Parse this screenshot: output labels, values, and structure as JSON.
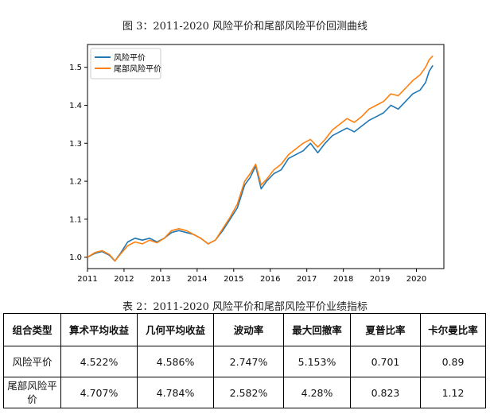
{
  "figure": {
    "title": "图 3：2011-2020 风险平价和尾部风险平价回测曲线"
  },
  "chart_data": {
    "type": "line",
    "title": "图 3：2011-2020 风险平价和尾部风险平价回测曲线",
    "xlabel": "",
    "ylabel": "",
    "xlim": [
      2011.0,
      2020.75
    ],
    "ylim": [
      0.97,
      1.56
    ],
    "x_ticks": [
      "2011",
      "2012",
      "2013",
      "2014",
      "2015",
      "2016",
      "2017",
      "2018",
      "2019",
      "2020"
    ],
    "y_ticks": [
      "1.0",
      "1.1",
      "1.2",
      "1.3",
      "1.4",
      "1.5"
    ],
    "legend_position": "top-left",
    "series": [
      {
        "name": "风险平价",
        "color": "#1f77b4",
        "x": [
          2011.0,
          2011.2,
          2011.4,
          2011.6,
          2011.75,
          2011.9,
          2012.1,
          2012.3,
          2012.5,
          2012.7,
          2012.9,
          2013.1,
          2013.3,
          2013.5,
          2013.7,
          2013.9,
          2014.1,
          2014.3,
          2014.5,
          2014.7,
          2014.9,
          2015.1,
          2015.3,
          2015.45,
          2015.6,
          2015.75,
          2015.9,
          2016.1,
          2016.3,
          2016.5,
          2016.7,
          2016.9,
          2017.1,
          2017.3,
          2017.5,
          2017.7,
          2017.9,
          2018.1,
          2018.3,
          2018.5,
          2018.7,
          2018.9,
          2019.1,
          2019.3,
          2019.5,
          2019.7,
          2019.9,
          2020.1,
          2020.25,
          2020.35,
          2020.45
        ],
        "values": [
          1.0,
          1.01,
          1.015,
          1.005,
          0.99,
          1.01,
          1.04,
          1.05,
          1.045,
          1.05,
          1.04,
          1.05,
          1.065,
          1.07,
          1.065,
          1.06,
          1.05,
          1.035,
          1.045,
          1.07,
          1.1,
          1.13,
          1.19,
          1.21,
          1.24,
          1.18,
          1.2,
          1.22,
          1.23,
          1.26,
          1.27,
          1.28,
          1.3,
          1.275,
          1.3,
          1.32,
          1.33,
          1.34,
          1.33,
          1.345,
          1.36,
          1.37,
          1.38,
          1.4,
          1.39,
          1.41,
          1.43,
          1.44,
          1.46,
          1.49,
          1.505
        ]
      },
      {
        "name": "尾部风险平价",
        "color": "#ff7f0e",
        "x": [
          2011.0,
          2011.2,
          2011.4,
          2011.6,
          2011.75,
          2011.9,
          2012.1,
          2012.3,
          2012.5,
          2012.7,
          2012.9,
          2013.1,
          2013.3,
          2013.5,
          2013.7,
          2013.9,
          2014.1,
          2014.3,
          2014.5,
          2014.7,
          2014.9,
          2015.1,
          2015.3,
          2015.45,
          2015.6,
          2015.75,
          2015.9,
          2016.1,
          2016.3,
          2016.5,
          2016.7,
          2016.9,
          2017.1,
          2017.3,
          2017.5,
          2017.7,
          2017.9,
          2018.1,
          2018.3,
          2018.5,
          2018.7,
          2018.9,
          2019.1,
          2019.3,
          2019.5,
          2019.7,
          2019.9,
          2020.1,
          2020.25,
          2020.35,
          2020.45
        ],
        "values": [
          1.0,
          1.012,
          1.017,
          1.007,
          0.99,
          1.008,
          1.03,
          1.04,
          1.035,
          1.045,
          1.038,
          1.05,
          1.07,
          1.075,
          1.07,
          1.06,
          1.05,
          1.035,
          1.045,
          1.075,
          1.105,
          1.14,
          1.2,
          1.22,
          1.245,
          1.19,
          1.205,
          1.23,
          1.245,
          1.27,
          1.285,
          1.3,
          1.31,
          1.29,
          1.31,
          1.335,
          1.35,
          1.365,
          1.355,
          1.37,
          1.39,
          1.4,
          1.41,
          1.43,
          1.425,
          1.445,
          1.465,
          1.48,
          1.5,
          1.52,
          1.53
        ]
      }
    ]
  },
  "table": {
    "title": "表 2：2011-2020 风险平价和尾部风险平价业绩指标",
    "headers": [
      "组合类型",
      "算术平均收益",
      "几何平均收益",
      "波动率",
      "最大回撤率",
      "夏普比率",
      "卡尔曼比率"
    ],
    "rows": [
      [
        "风险平价",
        "4.522%",
        "4.586%",
        "2.747%",
        "5.153%",
        "0.701",
        "0.89"
      ],
      [
        "尾部风险平价",
        "4.707%",
        "4.784%",
        "2.582%",
        "4.28%",
        "0.823",
        "1.12"
      ]
    ]
  }
}
